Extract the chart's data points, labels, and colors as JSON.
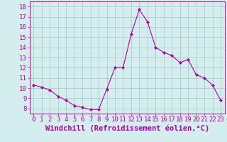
{
  "x": [
    0,
    1,
    2,
    3,
    4,
    5,
    6,
    7,
    8,
    9,
    10,
    11,
    12,
    13,
    14,
    15,
    16,
    17,
    18,
    19,
    20,
    21,
    22,
    23
  ],
  "y": [
    10.3,
    10.1,
    9.8,
    9.2,
    8.8,
    8.3,
    8.1,
    7.9,
    7.9,
    9.9,
    12.0,
    12.0,
    15.3,
    17.7,
    16.5,
    14.0,
    13.5,
    13.2,
    12.5,
    12.8,
    11.3,
    11.0,
    10.3,
    8.8
  ],
  "line_color": "#aa00aa",
  "marker": "D",
  "marker_size": 2.0,
  "bg_color": "#d4eeee",
  "grid_color": "#aacccc",
  "xlabel": "Windchill (Refroidissement éolien,°C)",
  "xlabel_fontsize": 7.5,
  "ylim": [
    7.5,
    18.5
  ],
  "xlim": [
    -0.5,
    23.5
  ],
  "yticks": [
    8,
    9,
    10,
    11,
    12,
    13,
    14,
    15,
    16,
    17,
    18
  ],
  "xticks": [
    0,
    1,
    2,
    3,
    4,
    5,
    6,
    7,
    8,
    9,
    10,
    11,
    12,
    13,
    14,
    15,
    16,
    17,
    18,
    19,
    20,
    21,
    22,
    23
  ],
  "label_color": "#aa00aa",
  "spine_color": "#aa00aa",
  "tick_labelsize": 6.5
}
